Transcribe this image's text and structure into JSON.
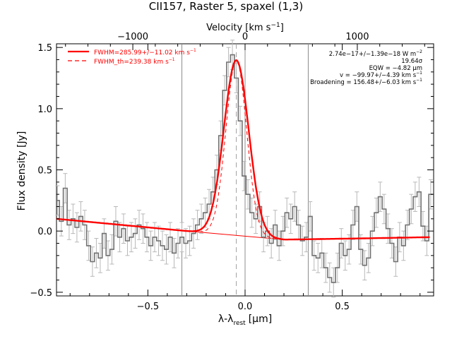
{
  "chart_data": {
    "type": "line",
    "title": "CII157, Raster 5, spaxel (1,3)",
    "xlabel": "λ-λ",
    "xlabel_sub": "rest",
    "xlabel_unit": "[μm]",
    "ylabel": "Flux density [Jy]",
    "top_axis_label": "Velocity [km s",
    "top_axis_label_sup": "−1",
    "top_axis_label_end": "]",
    "xlim": [
      -0.97,
      0.97
    ],
    "ylim": [
      -0.53,
      1.53
    ],
    "top_xlim": [
      -1680,
      1680
    ],
    "x_ticks": [
      -0.5,
      0.0,
      0.5
    ],
    "x_tick_labels": [
      "−0.5",
      "0.0",
      "0.5"
    ],
    "y_ticks": [
      -0.5,
      0.0,
      0.5,
      1.0,
      1.5
    ],
    "y_tick_labels": [
      "−0.5",
      "0.0",
      "0.5",
      "1.0",
      "1.5"
    ],
    "top_ticks": [
      -1000,
      0,
      1000
    ],
    "top_tick_labels": [
      "−1000",
      "0",
      "1000"
    ],
    "vertical_lines": [
      -0.325,
      -0.045,
      0.0,
      0.325
    ],
    "legend": [
      {
        "label": "FWHM=285.99+/−11.02 km s",
        "sup": "−1",
        "style": "solid",
        "color": "#ff0000"
      },
      {
        "label": "FWHM_th=239.38 km s",
        "sup": "−1",
        "style": "dashed",
        "color": "#ff0000"
      }
    ],
    "annotations": [
      {
        "text": "2.74e−17+/−1.39e−18 W m",
        "sup": "−2"
      },
      {
        "text": "19.64σ",
        "sup": ""
      },
      {
        "text": "EQW = −4.82 μm",
        "sup": ""
      },
      {
        "text": "v = −99.97+/−4.39 km s",
        "sup": "−1"
      },
      {
        "text": "Broadening = 156.48+/−6.03 km s",
        "sup": "−1"
      }
    ],
    "series": [
      {
        "style": "histogram",
        "color": "#707070",
        "x": [
          -0.965,
          -0.945,
          -0.925,
          -0.905,
          -0.885,
          -0.865,
          -0.845,
          -0.825,
          -0.805,
          -0.785,
          -0.765,
          -0.745,
          -0.725,
          -0.705,
          -0.685,
          -0.665,
          -0.645,
          -0.625,
          -0.605,
          -0.585,
          -0.565,
          -0.545,
          -0.525,
          -0.505,
          -0.485,
          -0.465,
          -0.445,
          -0.425,
          -0.405,
          -0.385,
          -0.365,
          -0.345,
          -0.325,
          -0.305,
          -0.285,
          -0.265,
          -0.245,
          -0.225,
          -0.205,
          -0.185,
          -0.165,
          -0.145,
          -0.125,
          -0.105,
          -0.085,
          -0.065,
          -0.045,
          -0.025,
          -0.005,
          0.015,
          0.035,
          0.055,
          0.075,
          0.095,
          0.115,
          0.135,
          0.155,
          0.175,
          0.195,
          0.215,
          0.235,
          0.255,
          0.275,
          0.295,
          0.315,
          0.335,
          0.355,
          0.375,
          0.395,
          0.415,
          0.435,
          0.455,
          0.475,
          0.495,
          0.515,
          0.535,
          0.555,
          0.575,
          0.595,
          0.615,
          0.635,
          0.655,
          0.675,
          0.695,
          0.715,
          0.735,
          0.755,
          0.775,
          0.795,
          0.815,
          0.835,
          0.855,
          0.875,
          0.895,
          0.915,
          0.935,
          0.955
        ],
        "y": [
          0.25,
          0.08,
          0.35,
          0.05,
          0.1,
          0.03,
          0.12,
          0.05,
          -0.12,
          -0.25,
          -0.18,
          -0.22,
          -0.02,
          -0.2,
          -0.15,
          0.08,
          -0.05,
          0.02,
          -0.08,
          -0.05,
          -0.02,
          0.05,
          0.02,
          -0.05,
          -0.12,
          -0.05,
          -0.08,
          -0.12,
          -0.15,
          -0.05,
          -0.18,
          -0.1,
          -0.05,
          -0.1,
          -0.08,
          -0.02,
          0.05,
          0.1,
          0.15,
          0.22,
          0.32,
          0.5,
          0.78,
          1.15,
          1.38,
          1.44,
          1.25,
          0.9,
          0.45,
          0.3,
          0.15,
          0.1,
          0.2,
          -0.05,
          0.0,
          -0.1,
          0.05,
          -0.12,
          0.0,
          0.15,
          0.1,
          0.2,
          0.05,
          -0.08,
          -0.05,
          0.12,
          -0.2,
          -0.22,
          -0.18,
          -0.3,
          -0.38,
          -0.42,
          -0.3,
          -0.1,
          -0.2,
          -0.15,
          0.05,
          0.2,
          -0.15,
          -0.28,
          -0.22,
          0.0,
          0.15,
          0.28,
          0.18,
          0.02,
          -0.1,
          -0.25,
          -0.05,
          -0.12,
          0.05,
          0.18,
          0.28,
          0.32,
          0.04,
          -0.08,
          0.3
        ],
        "err": 0.12
      },
      {
        "name": "FWHM=285.99+/−11.02 km s−1",
        "style": "solid",
        "color": "#ff0000",
        "model": "gaussian_plus_baseline",
        "amplitude": 1.43,
        "center": -0.045,
        "fwhm": 0.15,
        "baseline_points": [
          [
            -0.97,
            0.1
          ],
          [
            -0.3,
            -0.0
          ],
          [
            0.0,
            -0.04
          ],
          [
            0.2,
            -0.07
          ],
          [
            0.6,
            -0.06
          ],
          [
            0.95,
            -0.05
          ]
        ]
      },
      {
        "name": "FWHM_th=239.38 km s−1",
        "style": "dashed",
        "color": "#ff0000",
        "model": "gaussian_plus_baseline",
        "amplitude": 1.43,
        "center": -0.045,
        "fwhm": 0.125
      },
      {
        "style": "thin",
        "color": "#ff0000",
        "points": [
          [
            -0.3,
            0.0
          ],
          [
            0.2,
            -0.07
          ]
        ]
      }
    ]
  }
}
